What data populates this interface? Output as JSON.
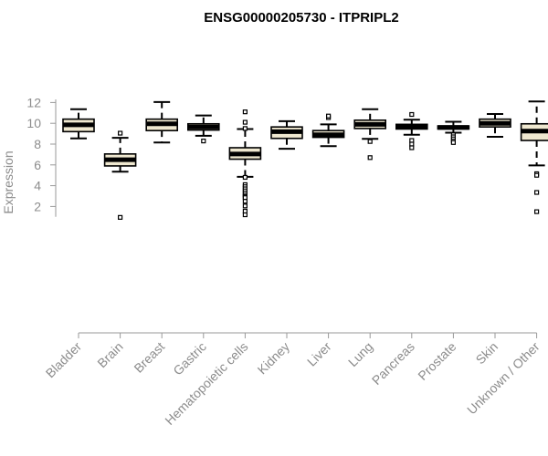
{
  "chart_data": {
    "type": "boxplot",
    "title": "ENSG00000205730 - ITPRIPL2",
    "xlabel": "",
    "ylabel": "Expression",
    "ylim": [
      1,
      12.3
    ],
    "yticks": [
      2,
      4,
      6,
      8,
      10,
      12
    ],
    "box_color": "#efe8d0",
    "categories": [
      "Bladder",
      "Brain",
      "Breast",
      "Gastric",
      "Hematopoietic cells",
      "Kidney",
      "Liver",
      "Lung",
      "Pancreas",
      "Prostate",
      "Skin",
      "Unknown / Other"
    ],
    "boxes": [
      {
        "category": "Bladder",
        "whisker_low": 8.55,
        "q1": 9.2,
        "median": 9.85,
        "q3": 10.4,
        "whisker_high": 11.35,
        "outliers": []
      },
      {
        "category": "Brain",
        "whisker_low": 5.35,
        "q1": 5.9,
        "median": 6.5,
        "q3": 7.05,
        "whisker_high": 8.6,
        "outliers": [
          9.05,
          0.95
        ]
      },
      {
        "category": "Breast",
        "whisker_low": 8.15,
        "q1": 9.3,
        "median": 9.95,
        "q3": 10.4,
        "whisker_high": 12.05,
        "outliers": []
      },
      {
        "category": "Gastric",
        "whisker_low": 8.8,
        "q1": 9.35,
        "median": 9.65,
        "q3": 9.95,
        "whisker_high": 10.75,
        "outliers": [
          8.3
        ]
      },
      {
        "category": "Hematopoietic cells",
        "whisker_low": 4.85,
        "q1": 6.55,
        "median": 7.05,
        "q3": 7.65,
        "whisker_high": 9.45,
        "outliers": [
          11.1,
          10.1,
          9.5,
          4.8,
          4.1,
          3.9,
          3.7,
          3.5,
          3.3,
          3.1,
          2.95,
          2.85,
          2.5,
          2.05,
          1.55,
          1.2
        ]
      },
      {
        "category": "Kidney",
        "whisker_low": 7.55,
        "q1": 8.55,
        "median": 9.2,
        "q3": 9.65,
        "whisker_high": 10.2,
        "outliers": []
      },
      {
        "category": "Liver",
        "whisker_low": 7.8,
        "q1": 8.65,
        "median": 8.9,
        "q3": 9.3,
        "whisker_high": 9.9,
        "outliers": [
          10.55,
          10.7
        ]
      },
      {
        "category": "Lung",
        "whisker_low": 8.5,
        "q1": 9.5,
        "median": 9.9,
        "q3": 10.3,
        "whisker_high": 11.35,
        "outliers": [
          8.25,
          6.7
        ]
      },
      {
        "category": "Pancreas",
        "whisker_low": 8.9,
        "q1": 9.45,
        "median": 9.7,
        "q3": 9.9,
        "whisker_high": 10.35,
        "outliers": [
          10.85,
          8.35,
          8.0,
          7.65
        ]
      },
      {
        "category": "Prostate",
        "whisker_low": 9.1,
        "q1": 9.45,
        "median": 9.6,
        "q3": 9.75,
        "whisker_high": 10.15,
        "outliers": [
          8.9,
          8.7,
          8.5,
          8.3,
          8.15
        ]
      },
      {
        "category": "Skin",
        "whisker_low": 8.7,
        "q1": 9.65,
        "median": 10.0,
        "q3": 10.4,
        "whisker_high": 10.9,
        "outliers": []
      },
      {
        "category": "Unknown / Other",
        "whisker_low": 5.95,
        "q1": 8.35,
        "median": 9.25,
        "q3": 9.95,
        "whisker_high": 12.1,
        "outliers": [
          5.15,
          5.0,
          3.35,
          1.5
        ]
      }
    ]
  }
}
